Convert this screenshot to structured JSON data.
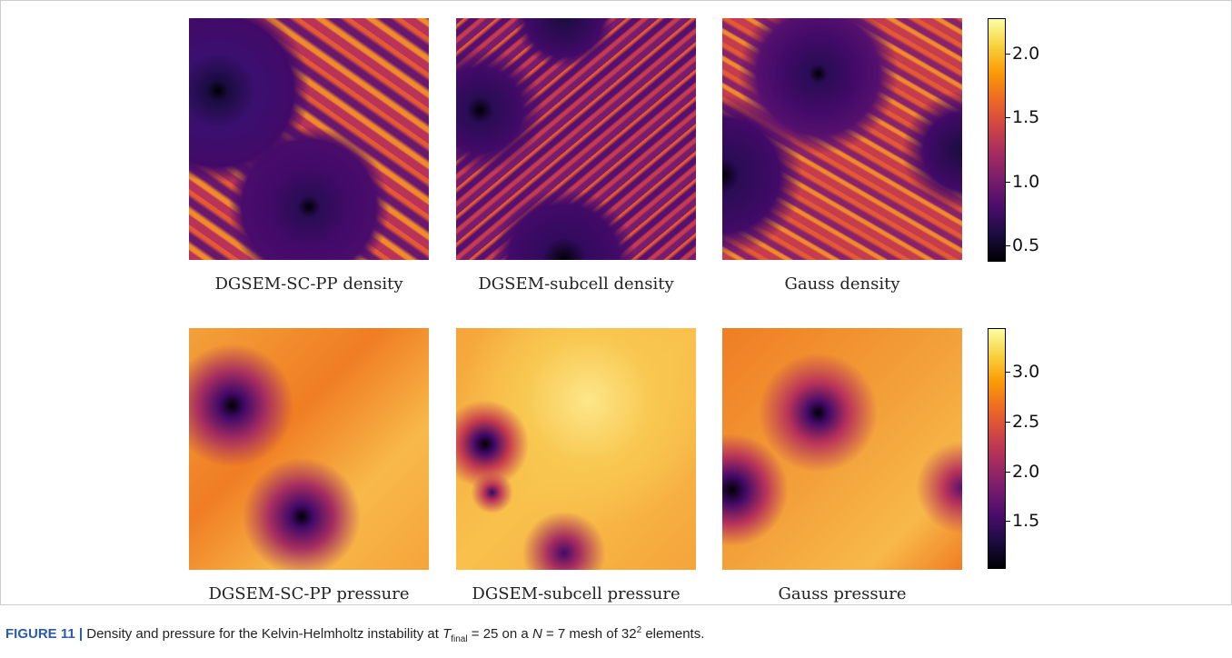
{
  "figure": {
    "panels": [
      {
        "label": "DGSEM-SC-PP density"
      },
      {
        "label": "DGSEM-subcell density"
      },
      {
        "label": "Gauss density"
      },
      {
        "label": "DGSEM-SC-PP pressure"
      },
      {
        "label": "DGSEM-subcell pressure"
      },
      {
        "label": "Gauss pressure"
      }
    ],
    "colorbars": [
      {
        "range": [
          0.37,
          2.28
        ],
        "ticks": [
          {
            "value": 0.5,
            "label": "0.5"
          },
          {
            "value": 1,
            "label": "1.0"
          },
          {
            "value": 1.5,
            "label": "1.5"
          },
          {
            "value": 2,
            "label": "2.0"
          }
        ]
      },
      {
        "range": [
          1.02,
          3.44
        ],
        "ticks": [
          {
            "value": 1.5,
            "label": "1.5"
          },
          {
            "value": 2,
            "label": "2.0"
          },
          {
            "value": 2.5,
            "label": "2.5"
          },
          {
            "value": 3,
            "label": "3.0"
          }
        ]
      }
    ],
    "caption": {
      "figure_label": "FIGURE 11 |",
      "text_1": "Density and pressure for the Kelvin-Helmholtz instability at",
      "t_symbol": "T",
      "t_subscript": "final",
      "text_2": "= 25 on a",
      "n_symbol": "N",
      "text_3": "= 7 mesh of 32",
      "exponent": "2",
      "text_4": "elements."
    }
  }
}
